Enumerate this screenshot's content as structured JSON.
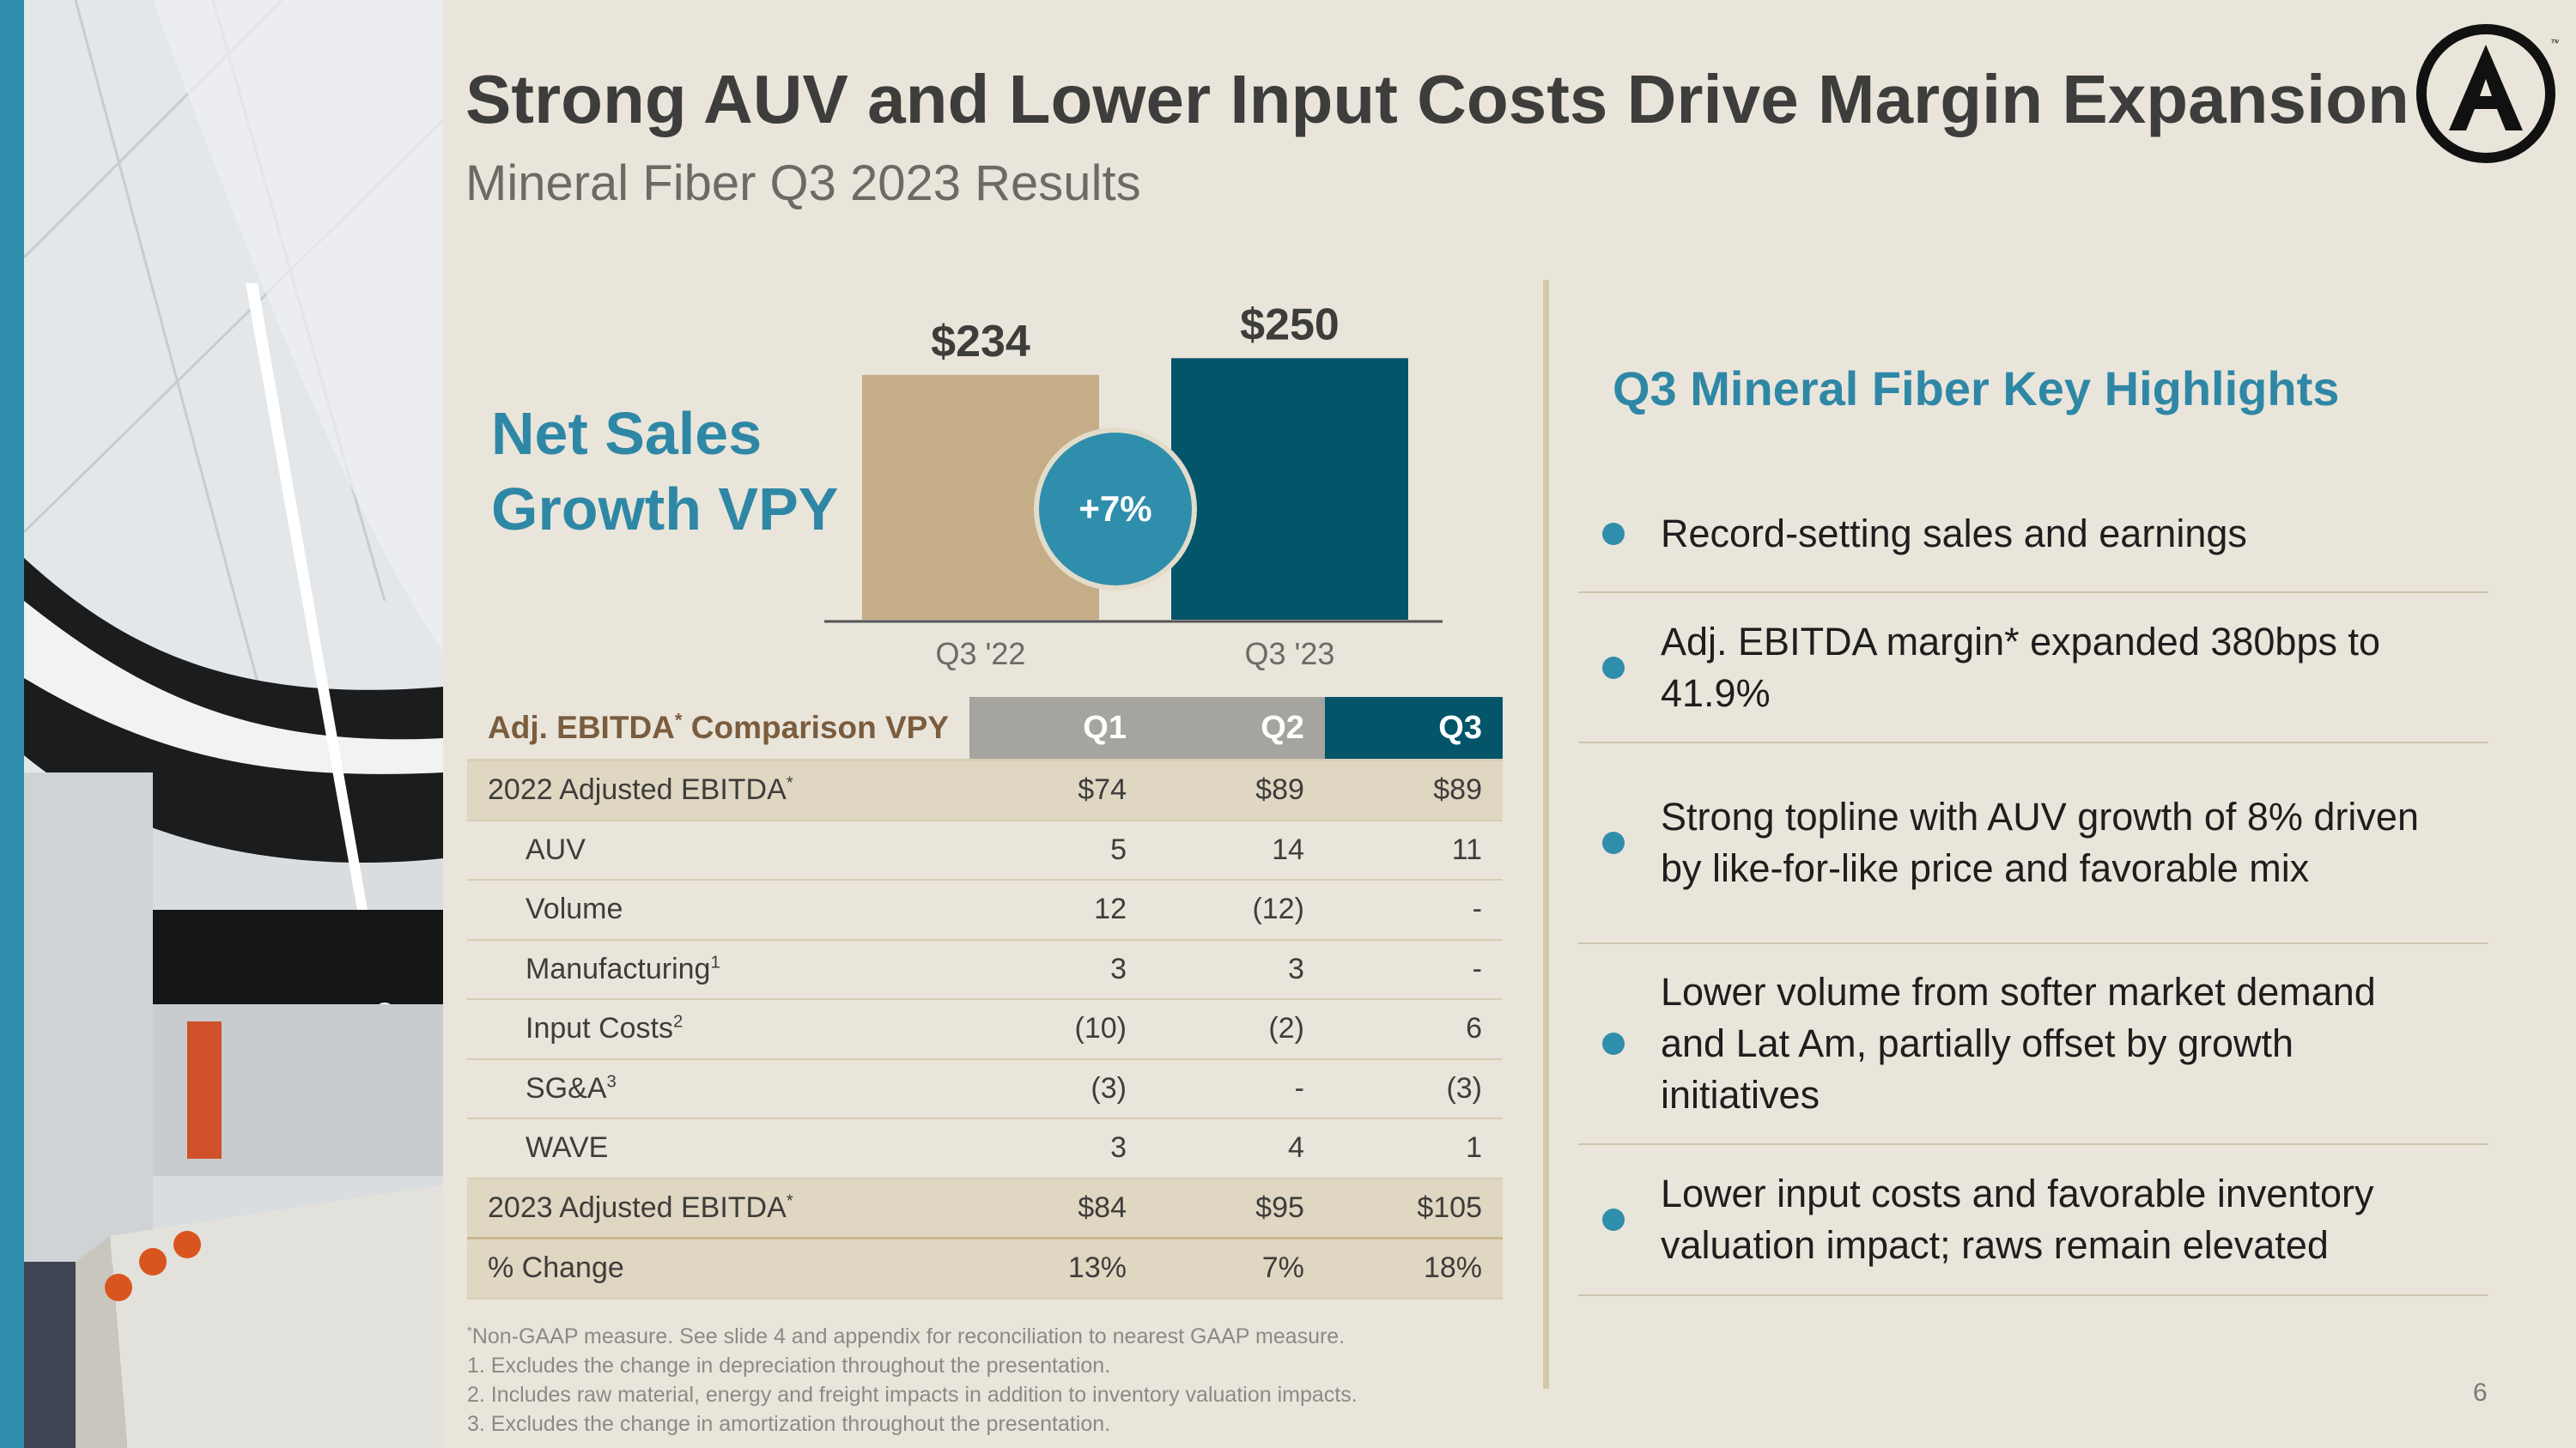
{
  "slide": {
    "title": "Strong AUV and Lower Input Costs Drive Margin Expansion",
    "subtitle": "Mineral Fiber Q3 2023 Results",
    "page_number": "6"
  },
  "net_sales": {
    "title_line1": "Net Sales",
    "title_line2": "Growth VPY",
    "growth_label": "+7%"
  },
  "chart_data": {
    "type": "bar",
    "title": "Net Sales Growth VPY",
    "categories": [
      "Q3 '22",
      "Q3 '23"
    ],
    "values": [
      234,
      250
    ],
    "value_labels": [
      "$234",
      "$250"
    ],
    "colors": [
      "#c4ad87",
      "#04546a"
    ],
    "annotation": "+7%",
    "xlabel": "",
    "ylabel": ""
  },
  "ebitda_table": {
    "header": {
      "label": "Adj. EBITDA",
      "label_suffix": " Comparison VPY",
      "columns": [
        "Q1",
        "Q2",
        "Q3"
      ]
    },
    "rows": [
      {
        "label": "2022 Adjusted EBITDA",
        "values": [
          "$74",
          "$89",
          "$89"
        ]
      },
      {
        "label": "AUV",
        "values": [
          "5",
          "14",
          "11"
        ]
      },
      {
        "label": "Volume",
        "values": [
          "12",
          "(12)",
          "-"
        ]
      },
      {
        "label": "Manufacturing",
        "values": [
          "3",
          "3",
          "-"
        ]
      },
      {
        "label": "Input Costs",
        "values": [
          "(10)",
          "(2)",
          "6"
        ]
      },
      {
        "label": "SG&A",
        "values": [
          "(3)",
          "-",
          "(3)"
        ]
      },
      {
        "label": "WAVE",
        "values": [
          "3",
          "4",
          "1"
        ]
      },
      {
        "label": "2023 Adjusted EBITDA",
        "values": [
          "$84",
          "$95",
          "$105"
        ]
      },
      {
        "label": "% Change",
        "values": [
          "13%",
          "7%",
          "18%"
        ]
      }
    ]
  },
  "footnotes": [
    "Non-GAAP measure. See slide 4 and appendix for reconciliation to nearest GAAP measure.",
    "1. Excludes the change in depreciation throughout the presentation.",
    "2. Includes raw material, energy and freight impacts in addition to inventory valuation impacts.",
    "3. Excludes the change in amortization throughout the presentation."
  ],
  "highlights": {
    "title": "Q3 Mineral Fiber Key Highlights",
    "items": [
      "Record-setting sales and earnings",
      "Adj. EBITDA margin* expanded 380bps to 41.9%",
      "Strong topline with AUV growth of 8% driven by like-for-like price and favorable mix",
      "Lower volume from softer market demand and Lat Am, partially offset by growth initiatives",
      "Lower input costs and favorable inventory valuation impact; raws remain elevated"
    ]
  },
  "colors": {
    "background": "#eae5da",
    "accent_blue": "#2f8eac",
    "dark_teal": "#04546a",
    "tan": "#c4ad87",
    "gray_header": "#a6a49f"
  }
}
